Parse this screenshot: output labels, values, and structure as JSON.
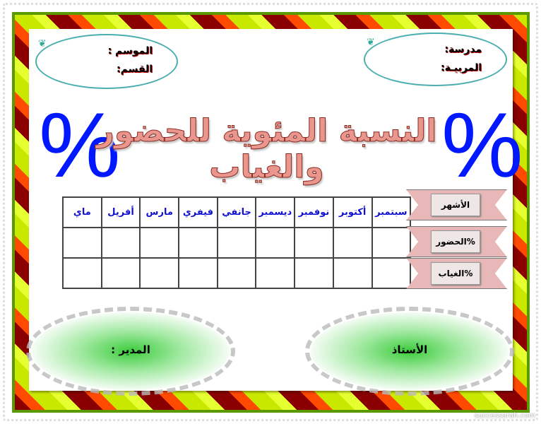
{
  "header": {
    "school_label": "مدرسة:",
    "wilaya_label": "المربيـة:",
    "season_label": "الموسم :",
    "class_label": "القسم:"
  },
  "title": "النسبة المئوية للحضور والغياب",
  "percent_symbol": "%",
  "table": {
    "row_labels": [
      "الأشهر",
      "%الحضور",
      "%الغياب"
    ],
    "months": [
      "سبتمبر",
      "أكتوبر",
      "نوفمبر",
      "ديسمبر",
      "جانفي",
      "فيفري",
      "مارس",
      "أفريل",
      "ماي"
    ],
    "attendance": [
      "",
      "",
      "",
      "",
      "",
      "",
      "",
      "",
      ""
    ],
    "absence": [
      "",
      "",
      "",
      "",
      "",
      "",
      "",
      "",
      ""
    ]
  },
  "signatures": {
    "teacher": "الأستاذ",
    "director": "المدير :"
  },
  "watermark": "successarah.com",
  "colors": {
    "frame_red": "#8a0000",
    "frame_orange": "#ff4a00",
    "frame_green": "#c8e800",
    "percent": "#0018ff",
    "month_text": "#1010d0",
    "band": "#e8b8b8"
  }
}
